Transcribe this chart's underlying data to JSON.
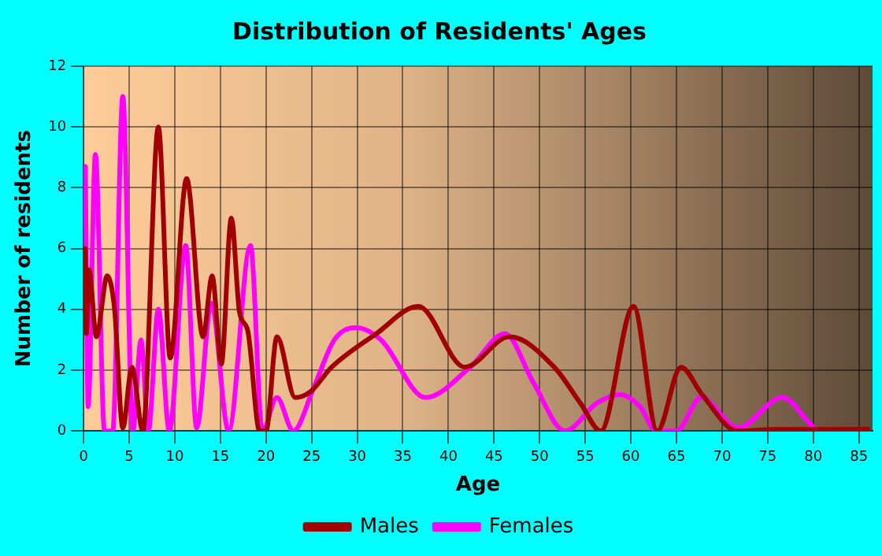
{
  "chart_data": {
    "type": "line",
    "title": "Distribution of Residents' Ages",
    "xlabel": "Age",
    "ylabel": "Number of residents",
    "xlim": [
      0,
      86.5
    ],
    "xticks": [
      0,
      5,
      10,
      15,
      20,
      25,
      30,
      35,
      40,
      45,
      50,
      55,
      60,
      65,
      70,
      75,
      80,
      85
    ],
    "ylim": [
      0,
      12
    ],
    "yticks": [
      0,
      2,
      4,
      6,
      8,
      10,
      12
    ],
    "grid": true,
    "legend": "bottom",
    "marker": "none",
    "line_style": "solid",
    "series": [
      {
        "name": "Males",
        "color": "#a00000",
        "x": [
          0.2,
          0.3,
          0.6,
          1.4,
          2.6,
          3.4,
          4.3,
          5.3,
          6.5,
          8.2,
          9.5,
          11.3,
          13.1,
          14.1,
          15.1,
          16.2,
          17.1,
          18,
          19.3,
          20,
          21.2,
          23.2,
          24.9,
          27.2,
          32.1,
          36.7,
          41.8,
          46.7,
          51.6,
          54.5,
          56.7,
          60.3,
          62.9,
          65.5,
          67.8,
          71.7,
          76,
          86
        ],
        "values": [
          6,
          3.2,
          5.3,
          3.1,
          5.1,
          4,
          0.1,
          2.1,
          0,
          10,
          2.4,
          8.3,
          3.1,
          5.1,
          2.2,
          7,
          3.9,
          3.3,
          0,
          0,
          3.1,
          1.1,
          1.3,
          2.1,
          3.2,
          4.1,
          2.1,
          3.1,
          2.1,
          0.9,
          0,
          4.1,
          0,
          2.1,
          1.2,
          0,
          0.05,
          0.05
        ]
      },
      {
        "name": "Females",
        "color": "#ff00ff",
        "x": [
          0.2,
          0.5,
          1.3,
          2.3,
          3.2,
          4.3,
          5.4,
          6.3,
          7.1,
          8.2,
          9.4,
          11.2,
          12.4,
          14,
          15.9,
          18.3,
          19.6,
          21.2,
          23,
          25.2,
          27.5,
          29.8,
          32.6,
          37.5,
          42.4,
          46.2,
          49.3,
          52.8,
          56.2,
          58.8,
          61,
          62.8,
          65,
          67.7,
          71.7,
          76.6,
          80.9,
          86
        ],
        "values": [
          8.7,
          0.8,
          9.1,
          0,
          0,
          11,
          0,
          3,
          0,
          4,
          0,
          6.1,
          0.1,
          4.2,
          0,
          6.1,
          0,
          1.1,
          0,
          1.4,
          3,
          3.4,
          3,
          1.1,
          2.1,
          3.2,
          1.6,
          0,
          0.9,
          1.2,
          0.8,
          0,
          0,
          1.1,
          0.1,
          1.1,
          0,
          0
        ]
      }
    ]
  }
}
